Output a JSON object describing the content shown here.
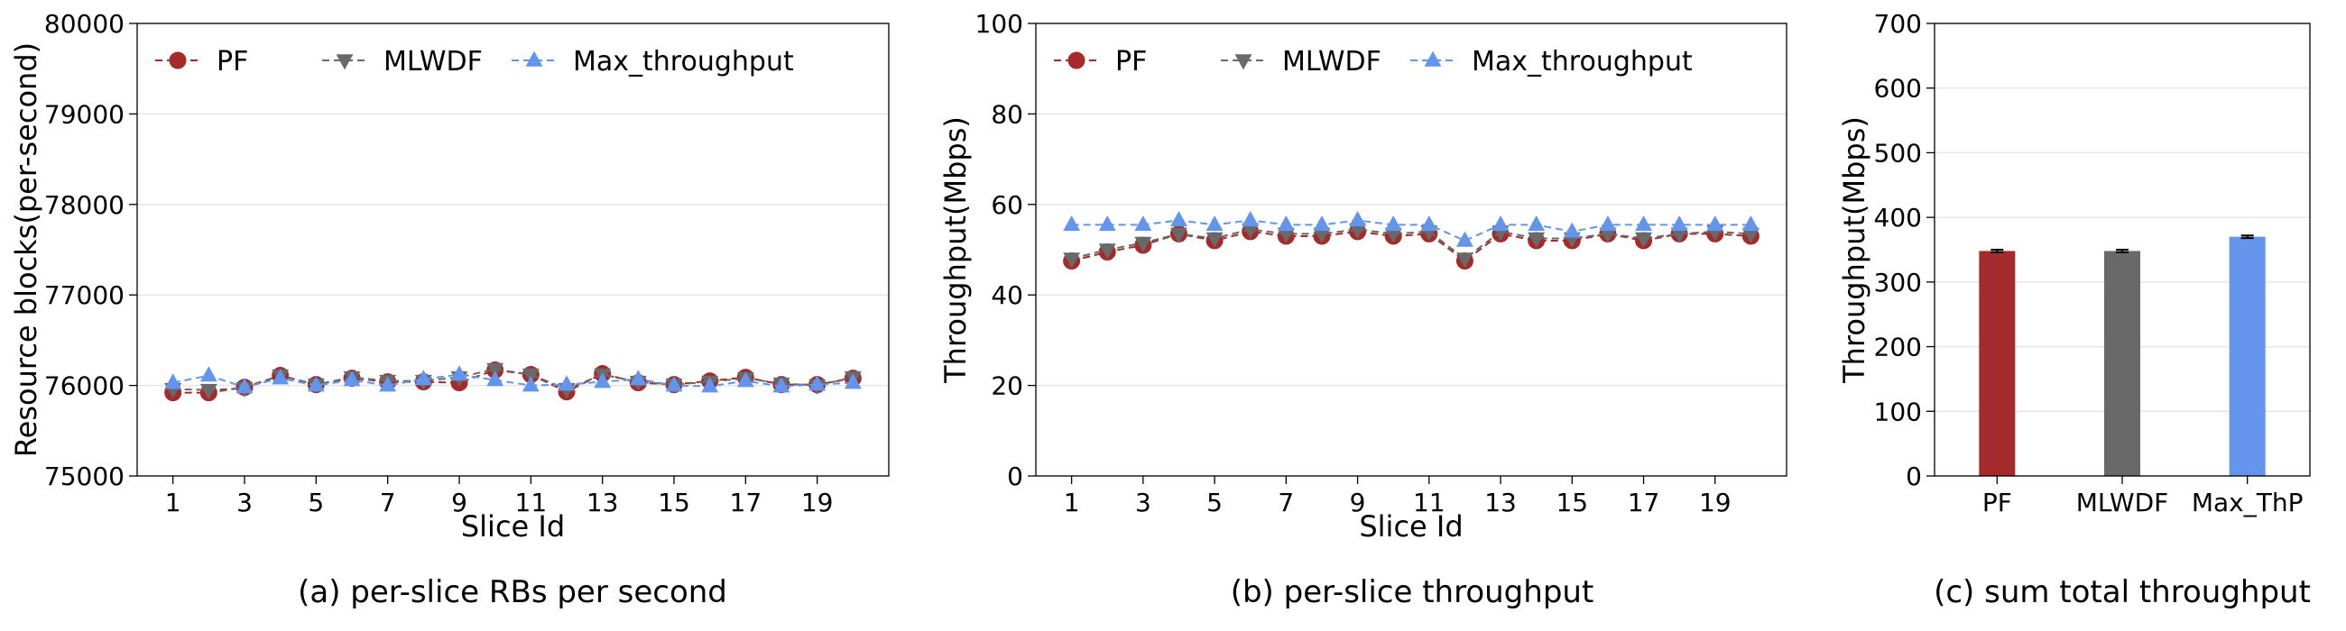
{
  "chart_data": [
    {
      "type": "line",
      "caption": "(a) per-slice RBs per second",
      "xlabel": "Slice Id",
      "ylabel": "Resource blocks(per-second)",
      "xlim": [
        0,
        21
      ],
      "ylim": [
        75000,
        80000
      ],
      "xticks": [
        "1",
        "3",
        "5",
        "7",
        "9",
        "11",
        "13",
        "15",
        "17",
        "19"
      ],
      "yticks": [
        "75000",
        "76000",
        "77000",
        "78000",
        "79000",
        "80000"
      ],
      "grid": "horizontal",
      "legend": "top, horizontal",
      "x": [
        1,
        2,
        3,
        4,
        5,
        6,
        7,
        8,
        9,
        10,
        11,
        12,
        13,
        14,
        15,
        16,
        17,
        18,
        19,
        20
      ],
      "series": [
        {
          "name": "PF",
          "color": "#a52a2a",
          "marker": "circle",
          "values": [
            75920,
            75920,
            75980,
            76110,
            76010,
            76080,
            76040,
            76040,
            76030,
            76170,
            76120,
            75930,
            76130,
            76030,
            76010,
            76050,
            76090,
            76010,
            76010,
            76080
          ]
        },
        {
          "name": "MLWDF",
          "color": "#696969",
          "marker": "triangle-down",
          "values": [
            75960,
            75950,
            75970,
            76110,
            76010,
            76090,
            76050,
            76050,
            76090,
            76180,
            76120,
            75960,
            76120,
            76040,
            76010,
            76040,
            76080,
            76020,
            76000,
            76090
          ]
        },
        {
          "name": "Max_throughput",
          "color": "#6495ed",
          "marker": "triangle-up",
          "values": [
            76030,
            76110,
            75980,
            76080,
            76000,
            76060,
            76000,
            76070,
            76120,
            76060,
            76000,
            76010,
            76040,
            76070,
            76000,
            75990,
            76050,
            75990,
            76010,
            76030
          ]
        }
      ]
    },
    {
      "type": "line",
      "caption": "(b) per-slice throughput",
      "xlabel": "Slice Id",
      "ylabel": "Throughput(Mbps)",
      "xlim": [
        0,
        21
      ],
      "ylim": [
        0,
        100
      ],
      "xticks": [
        "1",
        "3",
        "5",
        "7",
        "9",
        "11",
        "13",
        "15",
        "17",
        "19"
      ],
      "yticks": [
        "0",
        "20",
        "40",
        "60",
        "80",
        "100"
      ],
      "grid": "horizontal",
      "legend": "top, horizontal",
      "x": [
        1,
        2,
        3,
        4,
        5,
        6,
        7,
        8,
        9,
        10,
        11,
        12,
        13,
        14,
        15,
        16,
        17,
        18,
        19,
        20
      ],
      "series": [
        {
          "name": "PF",
          "color": "#a52a2a",
          "marker": "circle",
          "values": [
            47.5,
            49.5,
            51,
            53.5,
            52,
            54,
            53,
            53,
            54,
            53,
            53.5,
            47.5,
            53.5,
            52,
            52,
            53.5,
            52,
            53.5,
            53.5,
            53
          ]
        },
        {
          "name": "MLWDF",
          "color": "#696969",
          "marker": "triangle-down",
          "values": [
            48,
            50,
            51.5,
            53.5,
            52.5,
            54.5,
            53.5,
            53.5,
            54.5,
            53.5,
            54,
            48,
            54,
            52.5,
            52.5,
            53.5,
            52.5,
            53.5,
            54,
            53.5
          ]
        },
        {
          "name": "Max_throughput",
          "color": "#6495ed",
          "marker": "triangle-up",
          "values": [
            55.5,
            55.5,
            55.5,
            56.5,
            55.5,
            56.5,
            55.5,
            55.5,
            56.5,
            55.5,
            55.5,
            52,
            55.5,
            55.5,
            54,
            55.5,
            55.5,
            55.5,
            55.5,
            55.5
          ]
        }
      ]
    },
    {
      "type": "bar",
      "caption": "(c) sum total throughput",
      "xlabel": "",
      "ylabel": "Throughput(Mbps)",
      "ylim": [
        0,
        700
      ],
      "yticks": [
        "0",
        "100",
        "200",
        "300",
        "400",
        "500",
        "600",
        "700"
      ],
      "grid": "horizontal",
      "categories": [
        "PF",
        "MLWDF",
        "Max_ThP"
      ],
      "values": [
        348,
        348,
        370
      ],
      "errors": [
        2,
        2,
        2
      ],
      "colors": [
        "#a52a2a",
        "#696969",
        "#6495ed"
      ]
    }
  ]
}
